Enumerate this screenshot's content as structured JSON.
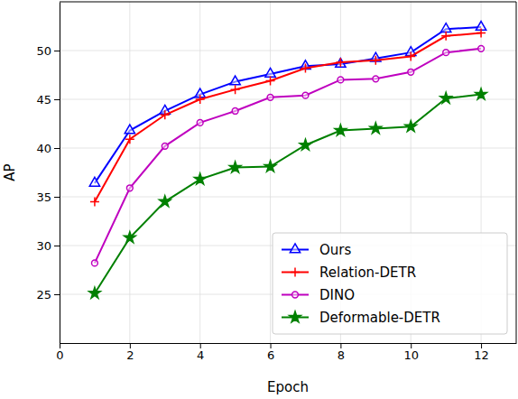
{
  "chart_data": {
    "type": "line",
    "x_label": "Epoch",
    "y_label": "AP",
    "x": [
      1,
      2,
      3,
      4,
      5,
      6,
      7,
      8,
      9,
      10,
      11,
      12
    ],
    "series": [
      {
        "name": "Ours",
        "color": "#0000ff",
        "marker": "triangle",
        "values": [
          36.4,
          41.8,
          43.8,
          45.5,
          46.8,
          47.6,
          48.4,
          48.6,
          49.2,
          49.8,
          52.2,
          52.4
        ]
      },
      {
        "name": "Relation-DETR",
        "color": "#ff0000",
        "marker": "plus",
        "values": [
          34.5,
          40.9,
          43.4,
          45.0,
          46.0,
          46.9,
          48.2,
          48.8,
          49.0,
          49.4,
          51.5,
          51.8
        ]
      },
      {
        "name": "DINO",
        "color": "#bf00bf",
        "marker": "circle",
        "values": [
          28.2,
          35.9,
          40.2,
          42.6,
          43.8,
          45.2,
          45.4,
          47.0,
          47.1,
          47.8,
          49.8,
          50.2
        ]
      },
      {
        "name": "Deformable-DETR",
        "color": "#008000",
        "marker": "star",
        "values": [
          25.1,
          30.8,
          34.5,
          36.8,
          38.0,
          38.1,
          40.3,
          41.8,
          42.0,
          42.2,
          45.1,
          45.5
        ]
      }
    ],
    "xlim": [
      0,
      13
    ],
    "xticks": [
      0,
      2,
      4,
      6,
      8,
      10,
      12
    ],
    "ylim": [
      20,
      55
    ],
    "yticks": [
      25,
      30,
      35,
      40,
      45,
      50
    ],
    "grid": true,
    "legend": "lower right"
  }
}
